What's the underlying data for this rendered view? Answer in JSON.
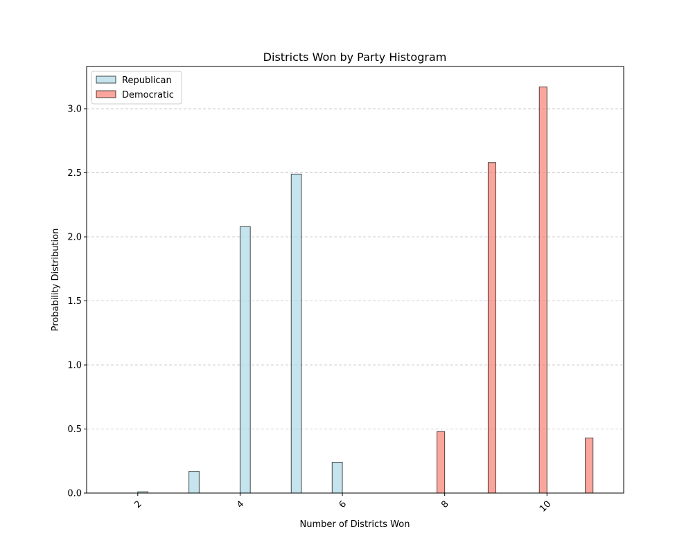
{
  "chart_data": {
    "type": "bar",
    "title": "Districts Won by Party Histogram",
    "xlabel": "Number of Districts Won",
    "ylabel": "Probability Distribution",
    "xlim": [
      1.0,
      11.5
    ],
    "ylim": [
      0,
      3.33
    ],
    "x_ticks": [
      2,
      4,
      6,
      8,
      10
    ],
    "x_tick_rotation": 45,
    "y_ticks": [
      0.0,
      0.5,
      1.0,
      1.5,
      2.0,
      2.5,
      3.0
    ],
    "y_tick_labels": [
      "0.0",
      "0.5",
      "1.0",
      "1.5",
      "2.0",
      "2.5",
      "3.0"
    ],
    "grid": "y",
    "legend_position": "top-left",
    "series": [
      {
        "name": "Republican",
        "color": "#add8e6",
        "bins": [
          {
            "start": 2.0,
            "end": 2.2,
            "value": 0.01
          },
          {
            "start": 3.0,
            "end": 3.2,
            "value": 0.17
          },
          {
            "start": 4.0,
            "end": 4.2,
            "value": 2.08
          },
          {
            "start": 5.0,
            "end": 5.2,
            "value": 2.49
          },
          {
            "start": 5.8,
            "end": 6.0,
            "value": 0.24
          }
        ]
      },
      {
        "name": "Democratic",
        "color": "#fa8072",
        "bins": [
          {
            "start": 7.85,
            "end": 8.0,
            "value": 0.48
          },
          {
            "start": 8.85,
            "end": 9.0,
            "value": 2.58
          },
          {
            "start": 9.85,
            "end": 10.0,
            "value": 3.17
          },
          {
            "start": 10.75,
            "end": 10.9,
            "value": 0.43
          }
        ]
      }
    ]
  }
}
